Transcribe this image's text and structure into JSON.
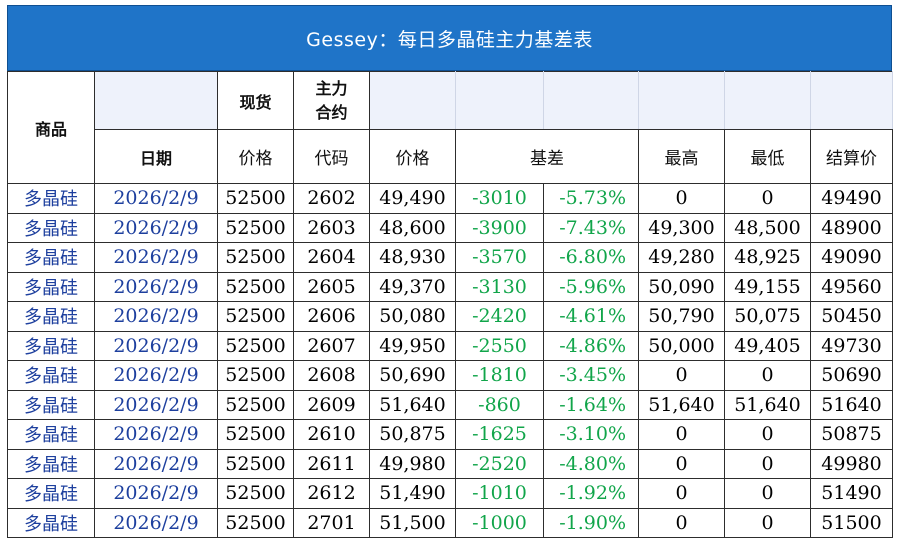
{
  "title": "Gessey：每日多晶硅主力基差表",
  "headers": {
    "product": "商品",
    "spot": "现货",
    "main_contract": "主力\n合约",
    "date": "日期",
    "price": "价格",
    "code": "代码",
    "futures_price": "价格",
    "basis": "基差",
    "high": "最高",
    "low": "最低",
    "settle": "结算价"
  },
  "rows": [
    {
      "product": "多晶硅",
      "date": "2026/2/9",
      "spot": "52500",
      "code": "2602",
      "price": "49,490",
      "basis": "-3010",
      "basis_pct": "-5.73%",
      "high": "0",
      "low": "0",
      "settle": "49490"
    },
    {
      "product": "多晶硅",
      "date": "2026/2/9",
      "spot": "52500",
      "code": "2603",
      "price": "48,600",
      "basis": "-3900",
      "basis_pct": "-7.43%",
      "high": "49,300",
      "low": "48,500",
      "settle": "48900"
    },
    {
      "product": "多晶硅",
      "date": "2026/2/9",
      "spot": "52500",
      "code": "2604",
      "price": "48,930",
      "basis": "-3570",
      "basis_pct": "-6.80%",
      "high": "49,280",
      "low": "48,925",
      "settle": "49090"
    },
    {
      "product": "多晶硅",
      "date": "2026/2/9",
      "spot": "52500",
      "code": "2605",
      "price": "49,370",
      "basis": "-3130",
      "basis_pct": "-5.96%",
      "high": "50,090",
      "low": "49,155",
      "settle": "49560"
    },
    {
      "product": "多晶硅",
      "date": "2026/2/9",
      "spot": "52500",
      "code": "2606",
      "price": "50,080",
      "basis": "-2420",
      "basis_pct": "-4.61%",
      "high": "50,790",
      "low": "50,075",
      "settle": "50450"
    },
    {
      "product": "多晶硅",
      "date": "2026/2/9",
      "spot": "52500",
      "code": "2607",
      "price": "49,950",
      "basis": "-2550",
      "basis_pct": "-4.86%",
      "high": "50,000",
      "low": "49,405",
      "settle": "49730"
    },
    {
      "product": "多晶硅",
      "date": "2026/2/9",
      "spot": "52500",
      "code": "2608",
      "price": "50,690",
      "basis": "-1810",
      "basis_pct": "-3.45%",
      "high": "0",
      "low": "0",
      "settle": "50690"
    },
    {
      "product": "多晶硅",
      "date": "2026/2/9",
      "spot": "52500",
      "code": "2609",
      "price": "51,640",
      "basis": "-860",
      "basis_pct": "-1.64%",
      "high": "51,640",
      "low": "51,640",
      "settle": "51640"
    },
    {
      "product": "多晶硅",
      "date": "2026/2/9",
      "spot": "52500",
      "code": "2610",
      "price": "50,875",
      "basis": "-1625",
      "basis_pct": "-3.10%",
      "high": "0",
      "low": "0",
      "settle": "50875"
    },
    {
      "product": "多晶硅",
      "date": "2026/2/9",
      "spot": "52500",
      "code": "2611",
      "price": "49,980",
      "basis": "-2520",
      "basis_pct": "-4.80%",
      "high": "0",
      "low": "0",
      "settle": "49980"
    },
    {
      "product": "多晶硅",
      "date": "2026/2/9",
      "spot": "52500",
      "code": "2612",
      "price": "51,490",
      "basis": "-1010",
      "basis_pct": "-1.92%",
      "high": "0",
      "low": "0",
      "settle": "51490"
    },
    {
      "product": "多晶硅",
      "date": "2026/2/9",
      "spot": "52500",
      "code": "2701",
      "price": "51,500",
      "basis": "-1000",
      "basis_pct": "-1.90%",
      "high": "0",
      "low": "0",
      "settle": "51500"
    }
  ],
  "colors": {
    "title_bg": "#1f74c8",
    "header_shade": "#eef2fb",
    "product_blue": "#1d3f9e",
    "basis_green": "#11a54a"
  }
}
